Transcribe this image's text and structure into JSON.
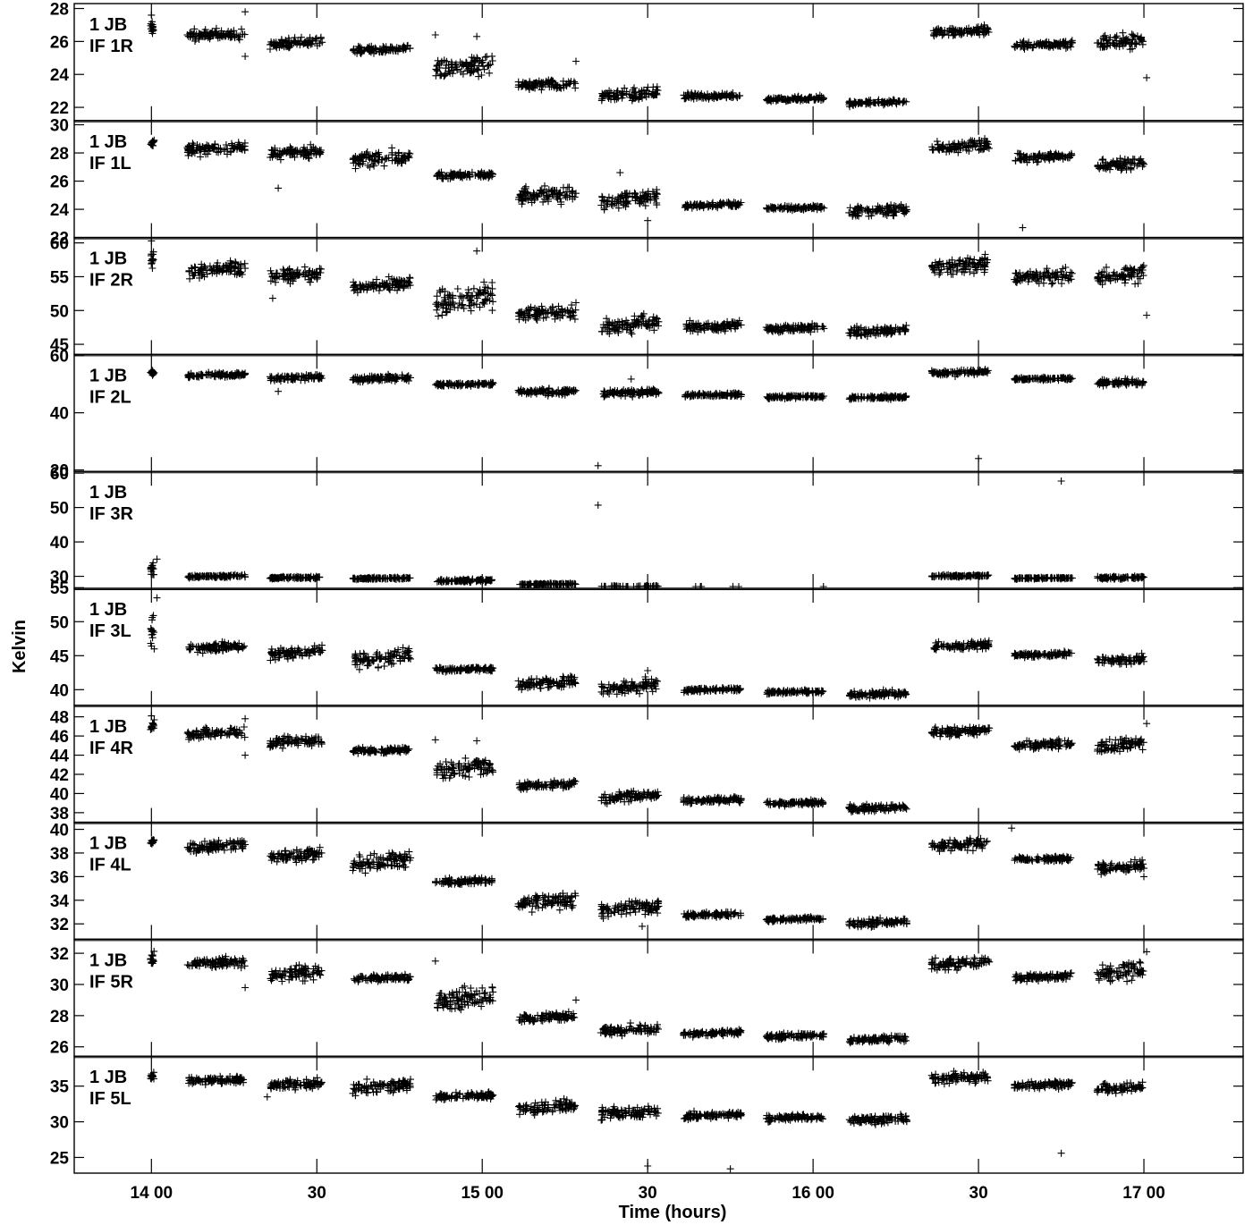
{
  "chart_data": {
    "type": "scatter",
    "marker": "+",
    "colors": {
      "marker": "#000000",
      "axes": "#000000",
      "background": "#ffffff"
    },
    "xlabel": "Time (hours)",
    "ylabel": "Kelvin",
    "x_ticks": [
      {
        "value": "14:00",
        "label": "14 00"
      },
      {
        "value": "14:30",
        "label": "30"
      },
      {
        "value": "15:00",
        "label": "15 00"
      },
      {
        "value": "15:30",
        "label": "30"
      },
      {
        "value": "16:00",
        "label": "16 00"
      },
      {
        "value": "16:30",
        "label": "30"
      },
      {
        "value": "17:00",
        "label": "17 00"
      }
    ],
    "xlim": [
      "13:46",
      "17:18"
    ],
    "scan_times": [
      [
        "13:59:50",
        "14:00:30"
      ],
      [
        "14:06:30",
        "14:17:00"
      ],
      [
        "14:21:30",
        "14:31:00"
      ],
      [
        "14:36:30",
        "14:47:00"
      ],
      [
        "14:51:30",
        "15:02:00"
      ],
      [
        "15:06:30",
        "15:17:00"
      ],
      [
        "15:21:30",
        "15:32:00"
      ],
      [
        "15:36:30",
        "15:47:00"
      ],
      [
        "15:51:30",
        "16:02:00"
      ],
      [
        "16:06:30",
        "16:17:00"
      ],
      [
        "16:21:30",
        "16:32:00"
      ],
      [
        "16:36:30",
        "16:47:00"
      ],
      [
        "16:51:30",
        "17:00:00"
      ]
    ],
    "panels": [
      {
        "label1": "1 JB",
        "label2": "IF 1R",
        "ylim": [
          21.2,
          28.3
        ],
        "yticks": [
          22,
          24,
          26,
          28
        ],
        "levels": [
          26.8,
          26.4,
          25.9,
          25.5,
          24.5,
          23.4,
          22.8,
          22.7,
          22.5,
          22.3,
          26.6,
          25.8,
          26.0
        ],
        "spread": [
          0.25,
          0.2,
          0.2,
          0.15,
          0.45,
          0.2,
          0.25,
          0.12,
          0.1,
          0.1,
          0.2,
          0.15,
          0.3
        ],
        "outliers": [
          [
            "14:00:00",
            27.6
          ],
          [
            "14:17:00",
            27.8
          ],
          [
            "14:17:00",
            25.1
          ],
          [
            "14:51:30",
            26.4
          ],
          [
            "14:59:00",
            26.3
          ],
          [
            "15:17:00",
            24.8
          ],
          [
            "17:00:30",
            23.8
          ]
        ]
      },
      {
        "label1": "1 JB",
        "label2": "IF 1L",
        "ylim": [
          22,
          30.3
        ],
        "yticks": [
          22,
          24,
          26,
          28,
          30
        ],
        "levels": [
          28.7,
          28.3,
          28.0,
          27.6,
          26.4,
          25.0,
          24.7,
          24.3,
          24.1,
          23.9,
          28.5,
          27.7,
          27.2
        ],
        "spread": [
          0.2,
          0.25,
          0.3,
          0.35,
          0.15,
          0.4,
          0.4,
          0.12,
          0.1,
          0.25,
          0.3,
          0.2,
          0.3
        ],
        "outliers": [
          [
            "14:23:00",
            25.5
          ],
          [
            "15:25:00",
            26.6
          ],
          [
            "15:30:00",
            23.2
          ],
          [
            "16:38:00",
            22.7
          ],
          [
            "17:00:00",
            27.2
          ]
        ]
      },
      {
        "label1": "1 JB",
        "label2": "IF 2R",
        "ylim": [
          43.5,
          60.8
        ],
        "yticks": [
          45,
          50,
          55,
          60
        ],
        "levels": [
          57.5,
          56.0,
          55.3,
          53.8,
          51.7,
          49.7,
          47.9,
          47.7,
          47.4,
          47.0,
          56.6,
          55.0,
          55.3
        ],
        "spread": [
          0.9,
          0.7,
          0.7,
          0.6,
          1.3,
          0.7,
          0.8,
          0.5,
          0.4,
          0.5,
          0.8,
          0.7,
          1.0
        ],
        "outliers": [
          [
            "14:00:00",
            60.3
          ],
          [
            "14:17:00",
            60.6
          ],
          [
            "14:59:00",
            58.8
          ],
          [
            "14:22:00",
            51.8
          ],
          [
            "17:00:30",
            49.3
          ]
        ]
      },
      {
        "label1": "1 JB",
        "label2": "IF 2L",
        "ylim": [
          19.5,
          60.4
        ],
        "yticks": [
          20,
          40,
          60
        ],
        "levels": [
          54.0,
          53.2,
          52.3,
          52.0,
          50.0,
          47.3,
          47.0,
          46.2,
          45.6,
          45.4,
          54.1,
          51.9,
          50.6
        ],
        "spread": [
          0.6,
          0.5,
          0.7,
          0.8,
          0.4,
          0.8,
          0.8,
          0.4,
          0.35,
          0.4,
          0.6,
          0.35,
          0.7
        ],
        "outliers": [
          [
            "15:21:00",
            21.5
          ],
          [
            "16:30:00",
            24.0
          ],
          [
            "14:23:00",
            47.5
          ],
          [
            "15:27:00",
            51.8
          ]
        ]
      },
      {
        "label1": "1 JB",
        "label2": "IF 3R",
        "ylim": [
          26.5,
          60.5
        ],
        "yticks": [
          30,
          40,
          50,
          60
        ],
        "levels": [
          32.3,
          30.0,
          29.6,
          29.4,
          28.7,
          27.7,
          27.0,
          26.9,
          26.8,
          26.7,
          30.1,
          29.5,
          29.6
        ],
        "spread": [
          1.2,
          0.25,
          0.25,
          0.2,
          0.3,
          0.2,
          0.15,
          0.1,
          0.1,
          0.1,
          0.2,
          0.15,
          0.3
        ],
        "outliers": [
          [
            "15:21:00",
            50.7
          ],
          [
            "16:45:00",
            57.7
          ],
          [
            "14:01:00",
            35.0
          ]
        ]
      },
      {
        "label1": "1 JB",
        "label2": "IF 3L",
        "ylim": [
          37.7,
          54.9
        ],
        "yticks": [
          40,
          45,
          50,
          55
        ],
        "levels": [
          49.0,
          46.2,
          45.5,
          44.7,
          43.0,
          41.0,
          40.4,
          40.0,
          39.7,
          39.3,
          46.4,
          45.2,
          44.4
        ],
        "spread": [
          1.8,
          0.4,
          0.5,
          0.7,
          0.25,
          0.6,
          0.6,
          0.2,
          0.2,
          0.3,
          0.4,
          0.25,
          0.4
        ],
        "outliers": [
          [
            "14:01:00",
            53.5
          ],
          [
            "14:00:30",
            46.0
          ],
          [
            "15:30:00",
            42.8
          ]
        ]
      },
      {
        "label1": "1 JB",
        "label2": "IF 4R",
        "ylim": [
          37,
          49.2
        ],
        "yticks": [
          38,
          40,
          42,
          44,
          46,
          48
        ],
        "levels": [
          47.0,
          46.3,
          45.4,
          44.5,
          42.7,
          40.9,
          39.7,
          39.3,
          39.0,
          38.5,
          46.5,
          45.1,
          45.1
        ],
        "spread": [
          0.35,
          0.35,
          0.35,
          0.2,
          0.6,
          0.25,
          0.35,
          0.2,
          0.15,
          0.25,
          0.3,
          0.3,
          0.5
        ],
        "outliers": [
          [
            "14:00:00",
            48.1
          ],
          [
            "14:17:00",
            47.8
          ],
          [
            "14:17:00",
            44.0
          ],
          [
            "14:51:30",
            45.6
          ],
          [
            "14:59:00",
            45.5
          ],
          [
            "17:00:30",
            47.3
          ]
        ]
      },
      {
        "label1": "1 JB",
        "label2": "IF 4L",
        "ylim": [
          30.7,
          40.6
        ],
        "yticks": [
          32,
          34,
          36,
          38,
          40
        ],
        "levels": [
          39.0,
          38.6,
          37.8,
          37.2,
          35.6,
          33.9,
          33.3,
          32.8,
          32.4,
          32.1,
          38.7,
          37.5,
          36.8
        ],
        "spread": [
          0.15,
          0.3,
          0.35,
          0.5,
          0.2,
          0.45,
          0.4,
          0.15,
          0.12,
          0.2,
          0.3,
          0.15,
          0.3
        ],
        "outliers": [
          [
            "16:36:00",
            40.1
          ],
          [
            "15:29:00",
            31.8
          ],
          [
            "17:00:00",
            36.0
          ]
        ]
      },
      {
        "label1": "1 JB",
        "label2": "IF 5R",
        "ylim": [
          25.4,
          32.9
        ],
        "yticks": [
          26,
          28,
          30,
          32
        ],
        "levels": [
          31.7,
          31.4,
          30.7,
          30.4,
          29.1,
          27.9,
          27.1,
          26.9,
          26.7,
          26.5,
          31.4,
          30.5,
          30.8
        ],
        "spread": [
          0.35,
          0.2,
          0.3,
          0.15,
          0.5,
          0.2,
          0.2,
          0.12,
          0.12,
          0.15,
          0.25,
          0.15,
          0.35
        ],
        "outliers": [
          [
            "14:51:30",
            31.5
          ],
          [
            "14:17:00",
            29.8
          ],
          [
            "15:17:00",
            29.0
          ],
          [
            "17:00:30",
            32.1
          ]
        ]
      },
      {
        "label1": "1 JB",
        "label2": "IF 5L",
        "ylim": [
          22.8,
          39.2
        ],
        "yticks": [
          25,
          30,
          35
        ],
        "levels": [
          36.4,
          35.8,
          35.3,
          35.0,
          33.6,
          32.0,
          31.3,
          30.9,
          30.6,
          30.3,
          36.2,
          35.2,
          34.7
        ],
        "spread": [
          0.3,
          0.4,
          0.5,
          0.6,
          0.3,
          0.6,
          0.6,
          0.35,
          0.3,
          0.4,
          0.5,
          0.35,
          0.5
        ],
        "outliers": [
          [
            "15:30:00",
            23.8
          ],
          [
            "15:45:00",
            23.4
          ],
          [
            "16:45:00",
            25.6
          ],
          [
            "14:21:00",
            33.5
          ]
        ]
      }
    ]
  }
}
